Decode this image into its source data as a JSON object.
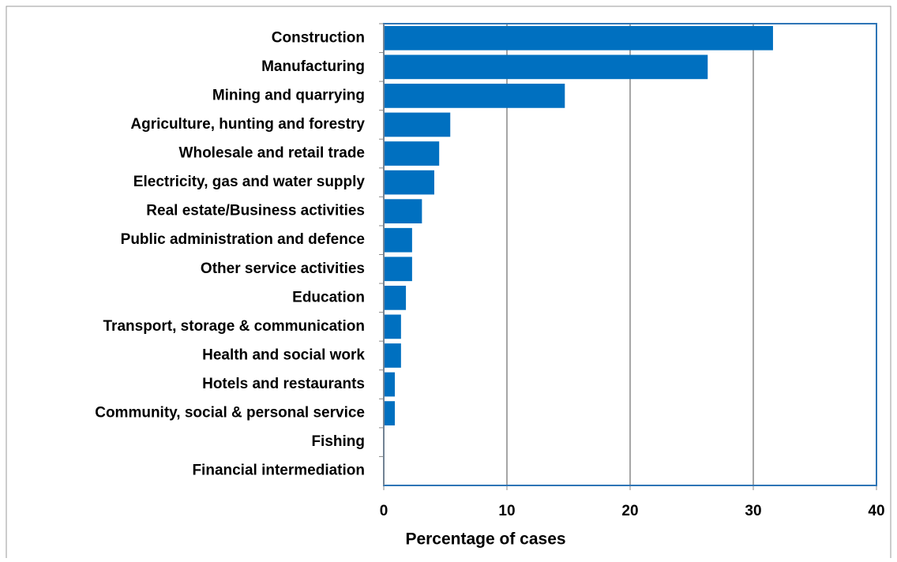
{
  "chart_data": {
    "type": "bar",
    "orientation": "horizontal",
    "x_label": "Percentage of cases",
    "categories": [
      "Construction",
      "Manufacturing",
      "Mining and quarrying",
      "Agriculture, hunting and forestry",
      "Wholesale and retail trade",
      "Electricity, gas and water supply",
      "Real estate/Business activities",
      "Public administration and defence",
      "Other service activities",
      "Education",
      "Transport, storage & communication",
      "Health and social work",
      "Hotels and restaurants",
      "Community, social & personal service",
      "Fishing",
      "Financial intermediation"
    ],
    "values": [
      31.6,
      26.3,
      14.7,
      5.4,
      4.5,
      4.1,
      3.1,
      2.3,
      2.3,
      1.8,
      1.4,
      1.4,
      0.9,
      0.9,
      0,
      0
    ],
    "color": "#0070c0",
    "xlim": [
      0,
      40
    ],
    "xticks": [
      0,
      10,
      20,
      30,
      40
    ],
    "grid": true
  }
}
